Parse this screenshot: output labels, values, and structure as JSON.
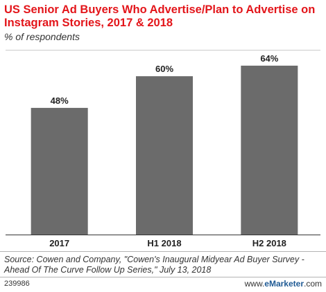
{
  "header": {
    "title": "US Senior Ad Buyers Who Advertise/Plan to Advertise on Instagram Stories, 2017 & 2018",
    "subtitle": "% of respondents"
  },
  "chart_data": {
    "type": "bar",
    "categories": [
      "2017",
      "H1 2018",
      "H2 2018"
    ],
    "values": [
      48,
      60,
      64
    ],
    "value_labels": [
      "48%",
      "60%",
      "64%"
    ],
    "ylim": [
      0,
      70
    ],
    "grid": true,
    "bar_color": "#6b6b6b"
  },
  "footer": {
    "source": "Source: Cowen and Company, \"Cowen's Inaugural Midyear Ad Buyer Survey - Ahead Of The Curve Follow Up Series,\" July 13, 2018",
    "chart_id": "239986",
    "brand_prefix": "www.",
    "brand_bold": "eMarketer",
    "brand_suffix": ".com"
  }
}
